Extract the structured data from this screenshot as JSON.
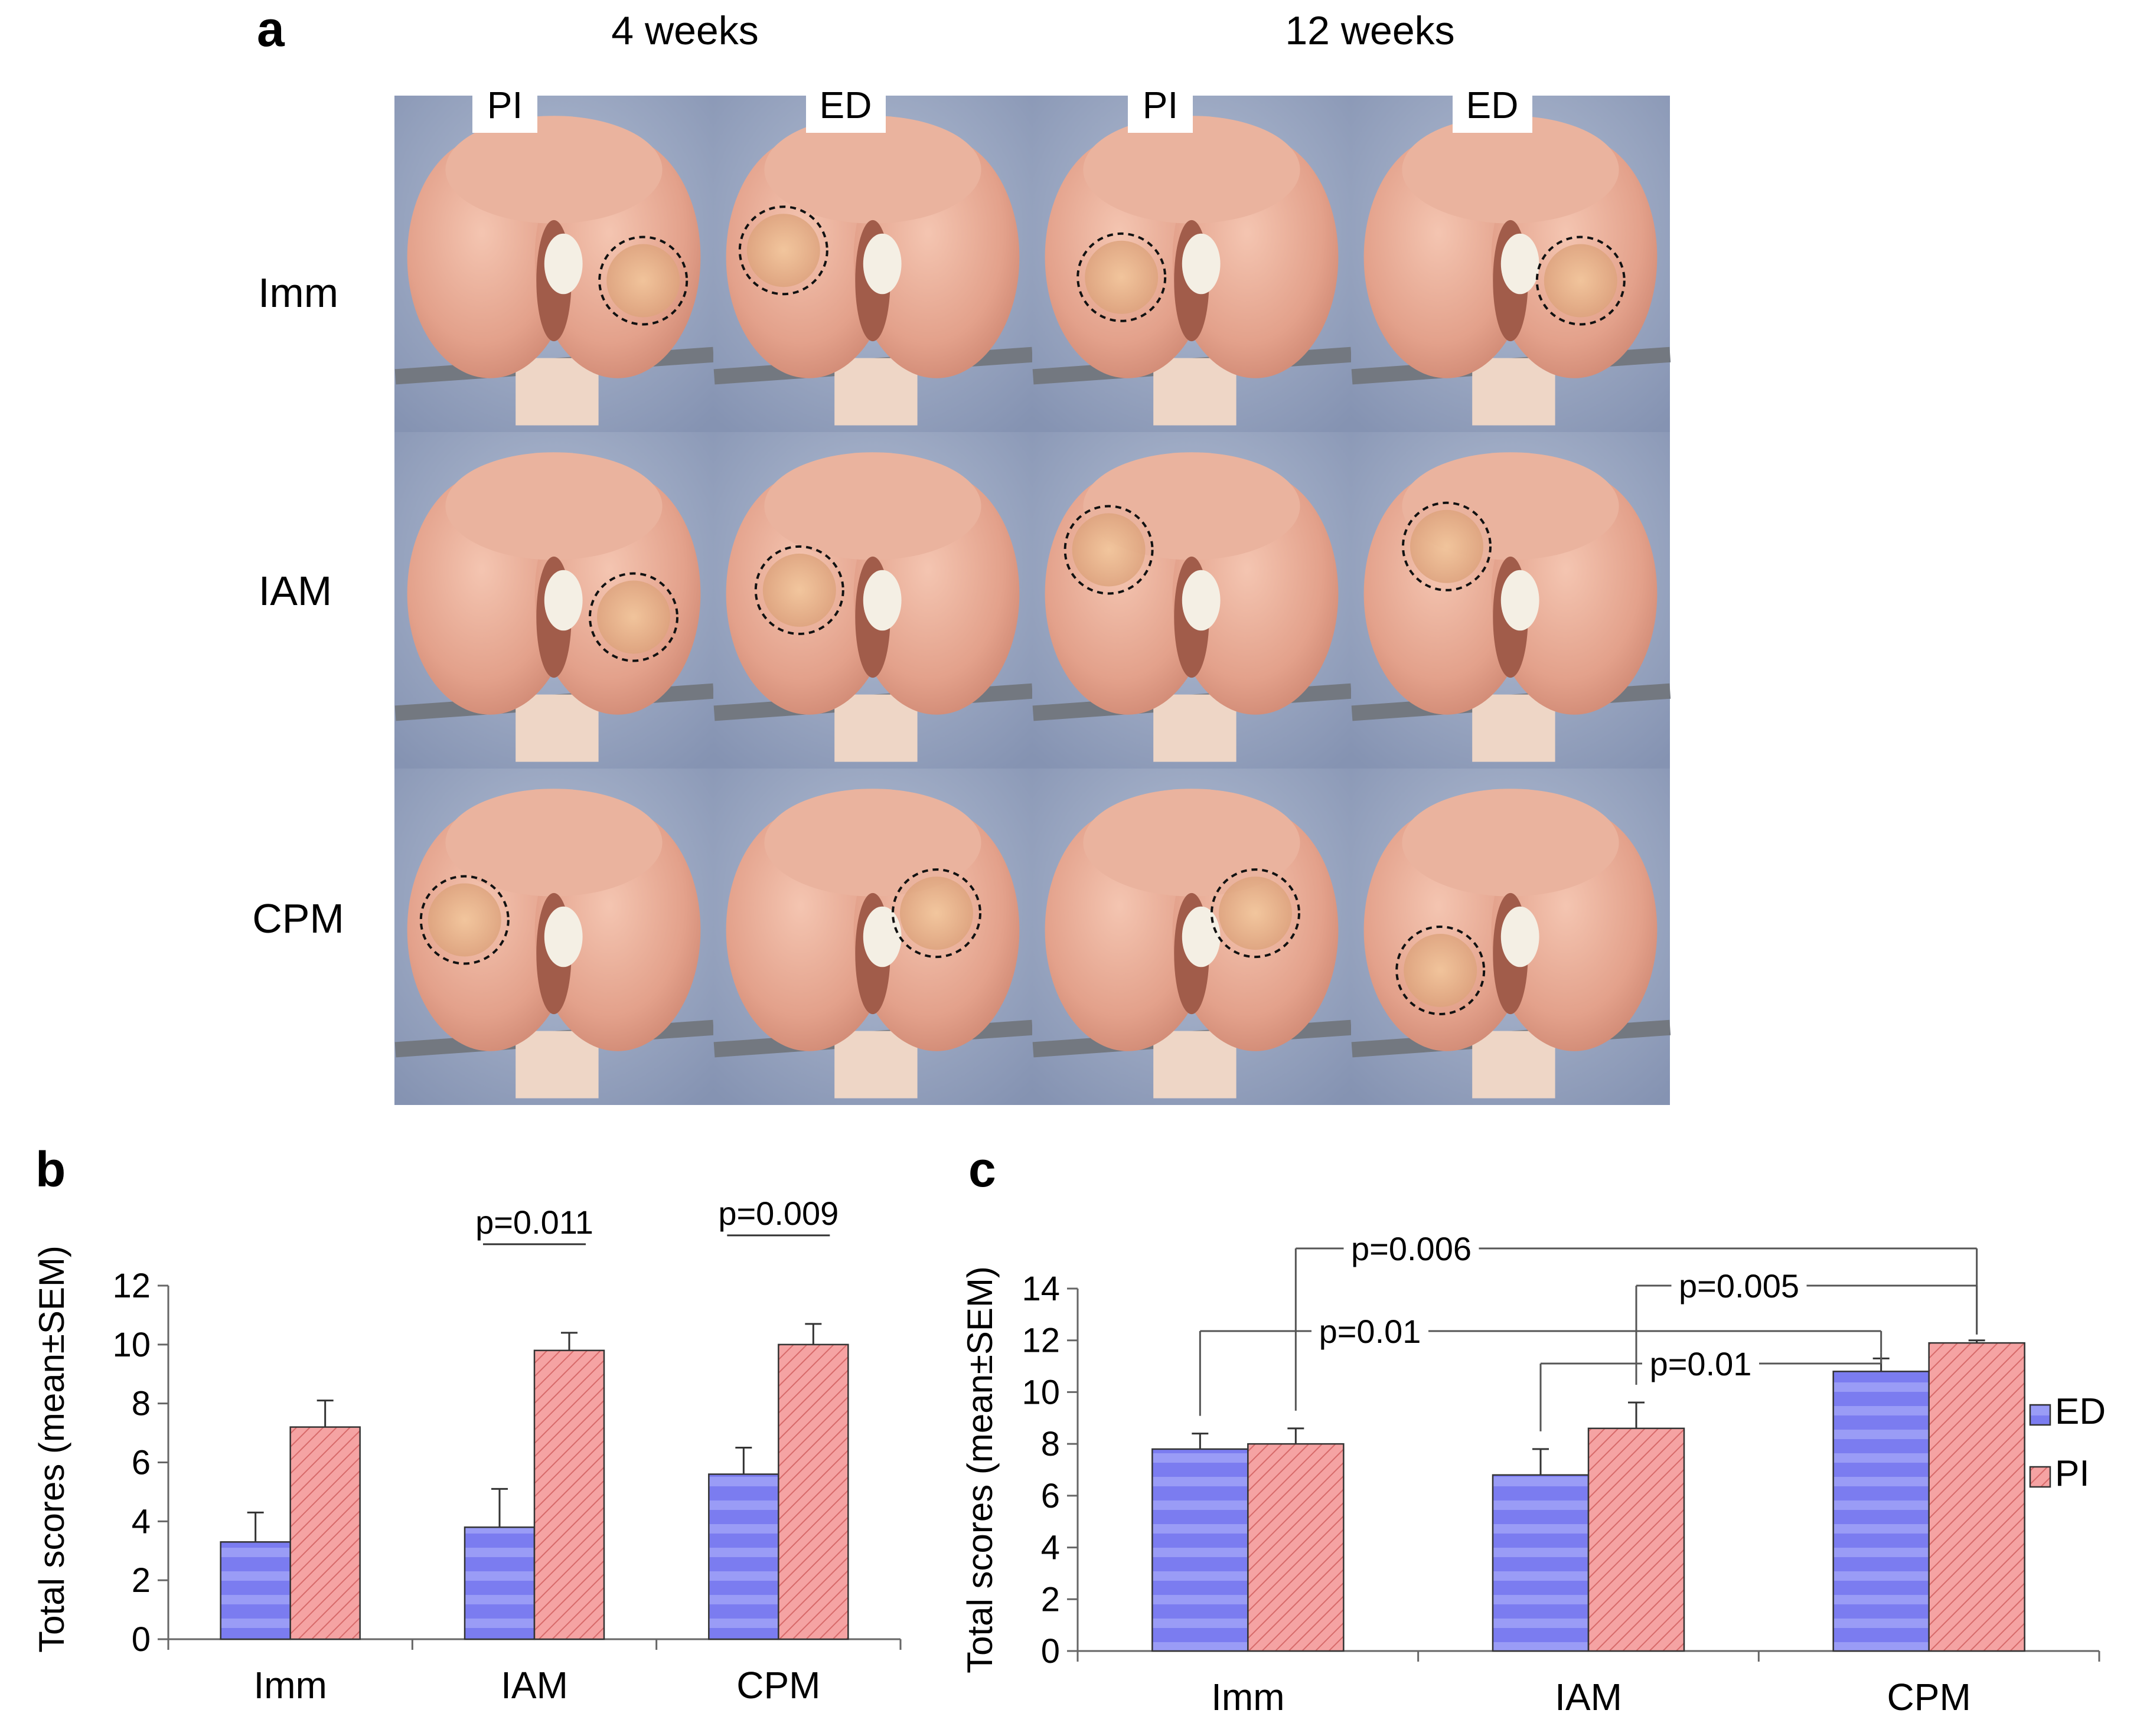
{
  "panel_a": {
    "letter": "a",
    "time_headers": [
      "4 weeks",
      "12 weeks"
    ],
    "column_labels": [
      "PI",
      "ED",
      "PI",
      "ED"
    ],
    "row_labels": [
      "Imm",
      "IAM",
      "CPM"
    ],
    "colors": {
      "tissue": "#e6a48e",
      "tissue_light": "#f2c2ad",
      "background": "#9aa8c4",
      "scaffold": "#f4efe4",
      "forceps": "#7a7f86"
    }
  },
  "chart_data": [
    {
      "type": "bar",
      "letter": "b",
      "categories": [
        "Imm",
        "IAM",
        "CPM"
      ],
      "series": [
        {
          "values": [
            3.3,
            3.8,
            5.6
          ],
          "errors": [
            1.0,
            1.3,
            0.9
          ],
          "color": "#7b7cf0"
        },
        {
          "values": [
            7.2,
            9.8,
            10.0
          ],
          "errors": [
            0.9,
            0.6,
            0.7
          ],
          "color": "#f5a3a3"
        }
      ],
      "ylabel": "Total scores (mean±SEM)",
      "yticks": [
        0,
        2,
        4,
        6,
        8,
        10,
        12
      ],
      "ylim": [
        0,
        12
      ],
      "legend": "none",
      "annotations": [
        {
          "text": "p=0.011",
          "category": 1
        },
        {
          "text": "p=0.009",
          "category": 2
        }
      ]
    },
    {
      "type": "bar",
      "letter": "c",
      "categories": [
        "Imm",
        "IAM",
        "CPM"
      ],
      "series": [
        {
          "name": "ED",
          "values": [
            7.8,
            6.8,
            10.8
          ],
          "errors": [
            0.6,
            1.0,
            0.5
          ],
          "color": "#7b7cf0"
        },
        {
          "name": "PI",
          "values": [
            8.0,
            8.6,
            11.9
          ],
          "errors": [
            0.6,
            1.0,
            0.1
          ],
          "color": "#f5a3a3"
        }
      ],
      "ylabel": "Total scores (mean±SEM)",
      "yticks": [
        0,
        2,
        4,
        6,
        8,
        10,
        12,
        14
      ],
      "ylim": [
        0,
        14
      ],
      "legend": "right",
      "annotations": [
        {
          "text": "p=0.006",
          "from": [
            0,
            1
          ],
          "to": [
            2,
            1
          ]
        },
        {
          "text": "p=0.005",
          "from": [
            1,
            1
          ],
          "to": [
            2,
            1
          ]
        },
        {
          "text": "p=0.01",
          "from": [
            0,
            0
          ],
          "to": [
            2,
            0
          ]
        },
        {
          "text": "p=0.01",
          "from": [
            1,
            0
          ],
          "to": [
            2,
            0
          ]
        }
      ]
    }
  ]
}
